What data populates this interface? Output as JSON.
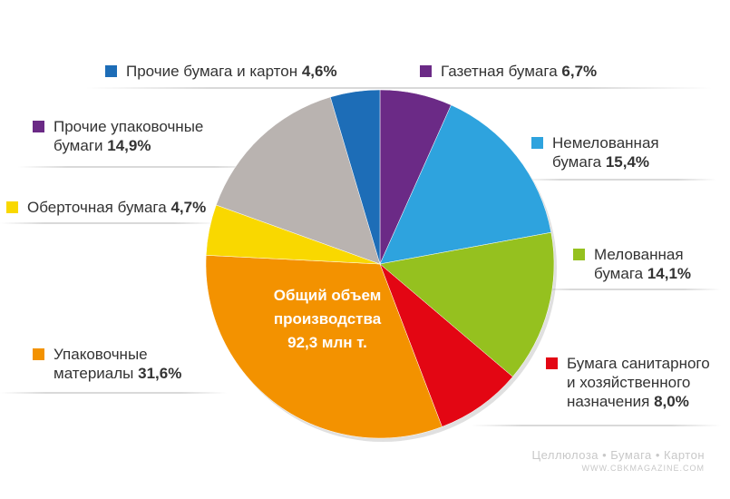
{
  "chart_data": {
    "type": "pie",
    "center_text": [
      "Общий объем",
      "производства",
      "92,3 млн т."
    ],
    "slices": [
      {
        "label": "Газетная бумага",
        "value": 6.7,
        "value_label": "6,7%",
        "color": "#6b2a86"
      },
      {
        "label": "Немелованная бумага",
        "value": 15.4,
        "value_label": "15,4%",
        "color": "#2ea3de"
      },
      {
        "label": "Мелованная бумага",
        "value": 14.1,
        "value_label": "14,1%",
        "color": "#95c11f"
      },
      {
        "label": "Бумага санитарного и хозяйственного назначения",
        "value": 8.0,
        "value_label": "8,0%",
        "color": "#e30613"
      },
      {
        "label": "Упаковочные материалы",
        "value": 31.6,
        "value_label": "31,6%",
        "color": "#f39200"
      },
      {
        "label": "Оберточная бумага",
        "value": 4.7,
        "value_label": "4,7%",
        "color": "#f9d800"
      },
      {
        "label": "Прочие упаковочные бумаги",
        "value": 14.9,
        "value_label": "14,9%",
        "color": "#b9b3b0"
      },
      {
        "label": "Прочие бумага и картон",
        "value": 4.6,
        "value_label": "4,6%",
        "color": "#1d6db7"
      }
    ]
  },
  "labels": {
    "gazetnaya": [
      "Газетная бумага"
    ],
    "nemelovannaya": [
      "Немелованная",
      "бумага"
    ],
    "melovannaya": [
      "Мелованная",
      "бумага"
    ],
    "sanitarnaya": [
      "Бумага санитарного",
      "и хозяйственного",
      "назначения"
    ],
    "upakovochnye": [
      "Упаковочные",
      "материалы"
    ],
    "obertochnaya": [
      "Оберточная бумага"
    ],
    "prochie_upak": [
      "Прочие упаковочные",
      "бумаги"
    ],
    "prochie_karton": [
      "Прочие бумага и картон"
    ]
  },
  "watermark": {
    "line1": "Целлюлоза • Бумага • Картон",
    "line2": "WWW.CBKMAGAZINE.COM"
  }
}
